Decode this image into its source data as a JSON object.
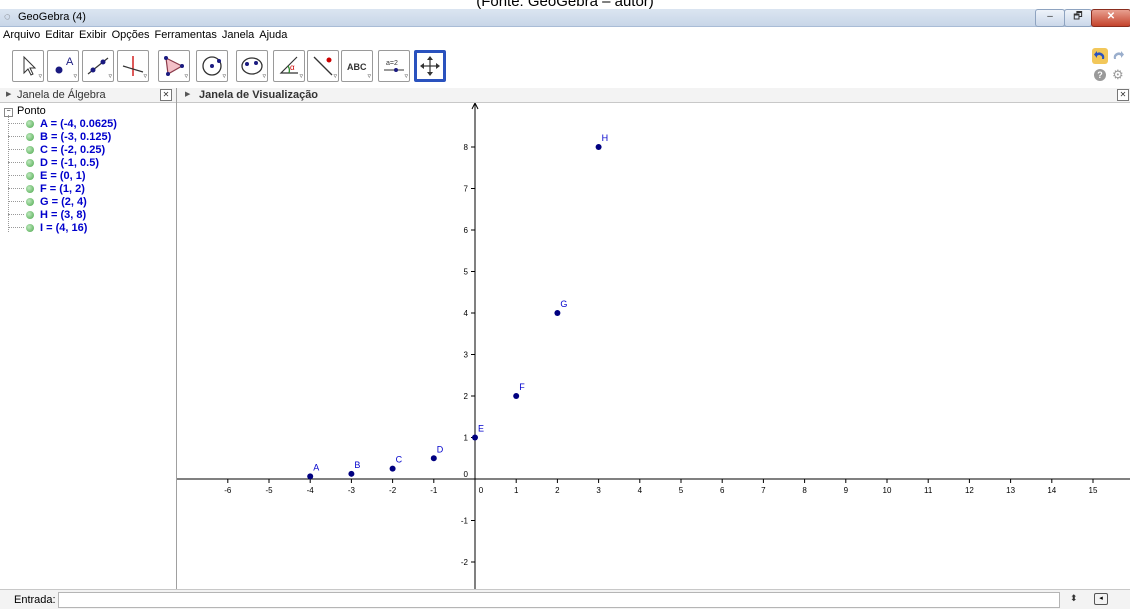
{
  "caption": "(Fonte: GeoGebra – autor)",
  "window": {
    "title": "GeoGebra (4)",
    "minimize": "–",
    "maximize": "🗗",
    "close": "✕"
  },
  "menu": [
    "Arquivo",
    "Editar",
    "Exibir",
    "Opções",
    "Ferramentas",
    "Janela",
    "Ajuda"
  ],
  "toolbar": {
    "tools": [
      {
        "name": "move-tool",
        "icon": "arrow-pointer-icon"
      },
      {
        "name": "point-tool",
        "icon": "point-icon",
        "label": "A"
      },
      {
        "name": "line-tool",
        "icon": "line-icon"
      },
      {
        "name": "perpendicular-tool",
        "icon": "perpendicular-icon"
      },
      {
        "name": "polygon-tool",
        "icon": "polygon-icon"
      },
      {
        "name": "circle-tool",
        "icon": "circle-icon"
      },
      {
        "name": "conic-tool",
        "icon": "conic-icon"
      },
      {
        "name": "angle-tool",
        "icon": "angle-icon",
        "label": "α"
      },
      {
        "name": "reflect-tool",
        "icon": "reflect-icon"
      },
      {
        "name": "text-tool",
        "icon": "text-icon",
        "label": "ABC"
      },
      {
        "name": "slider-tool",
        "icon": "slider-icon",
        "label": "a=2"
      },
      {
        "name": "move-view-tool",
        "icon": "move-cross-icon",
        "selected": true
      }
    ],
    "help": "?"
  },
  "algebra_panel": {
    "title": "Janela de Álgebra",
    "group": "Ponto",
    "items": [
      "A = (-4, 0.0625)",
      "B = (-3, 0.125)",
      "C = (-2, 0.25)",
      "D = (-1, 0.5)",
      "E = (0, 1)",
      "F = (1, 2)",
      "G = (2, 4)",
      "H = (3, 8)",
      "I = (4, 16)"
    ]
  },
  "graphics_panel": {
    "title": "Janela de Visualização",
    "x_ticks": [
      -6,
      -5,
      -4,
      -3,
      -2,
      -1,
      0,
      1,
      2,
      3,
      4,
      5,
      6,
      7,
      8,
      9,
      10,
      11,
      12,
      13,
      14,
      15
    ],
    "y_ticks": [
      -2,
      -1,
      0,
      1,
      2,
      3,
      4,
      5,
      6,
      7,
      8
    ],
    "points": [
      {
        "label": "A",
        "x": -4,
        "y": 0.0625
      },
      {
        "label": "B",
        "x": -3,
        "y": 0.125
      },
      {
        "label": "C",
        "x": -2,
        "y": 0.25
      },
      {
        "label": "D",
        "x": -1,
        "y": 0.5
      },
      {
        "label": "E",
        "x": 0,
        "y": 1
      },
      {
        "label": "F",
        "x": 1,
        "y": 2
      },
      {
        "label": "G",
        "x": 2,
        "y": 4
      },
      {
        "label": "H",
        "x": 3,
        "y": 8
      }
    ],
    "point_color": "#000080",
    "label_color": "#0000cc"
  },
  "input_bar": {
    "label": "Entrada:",
    "value": ""
  }
}
